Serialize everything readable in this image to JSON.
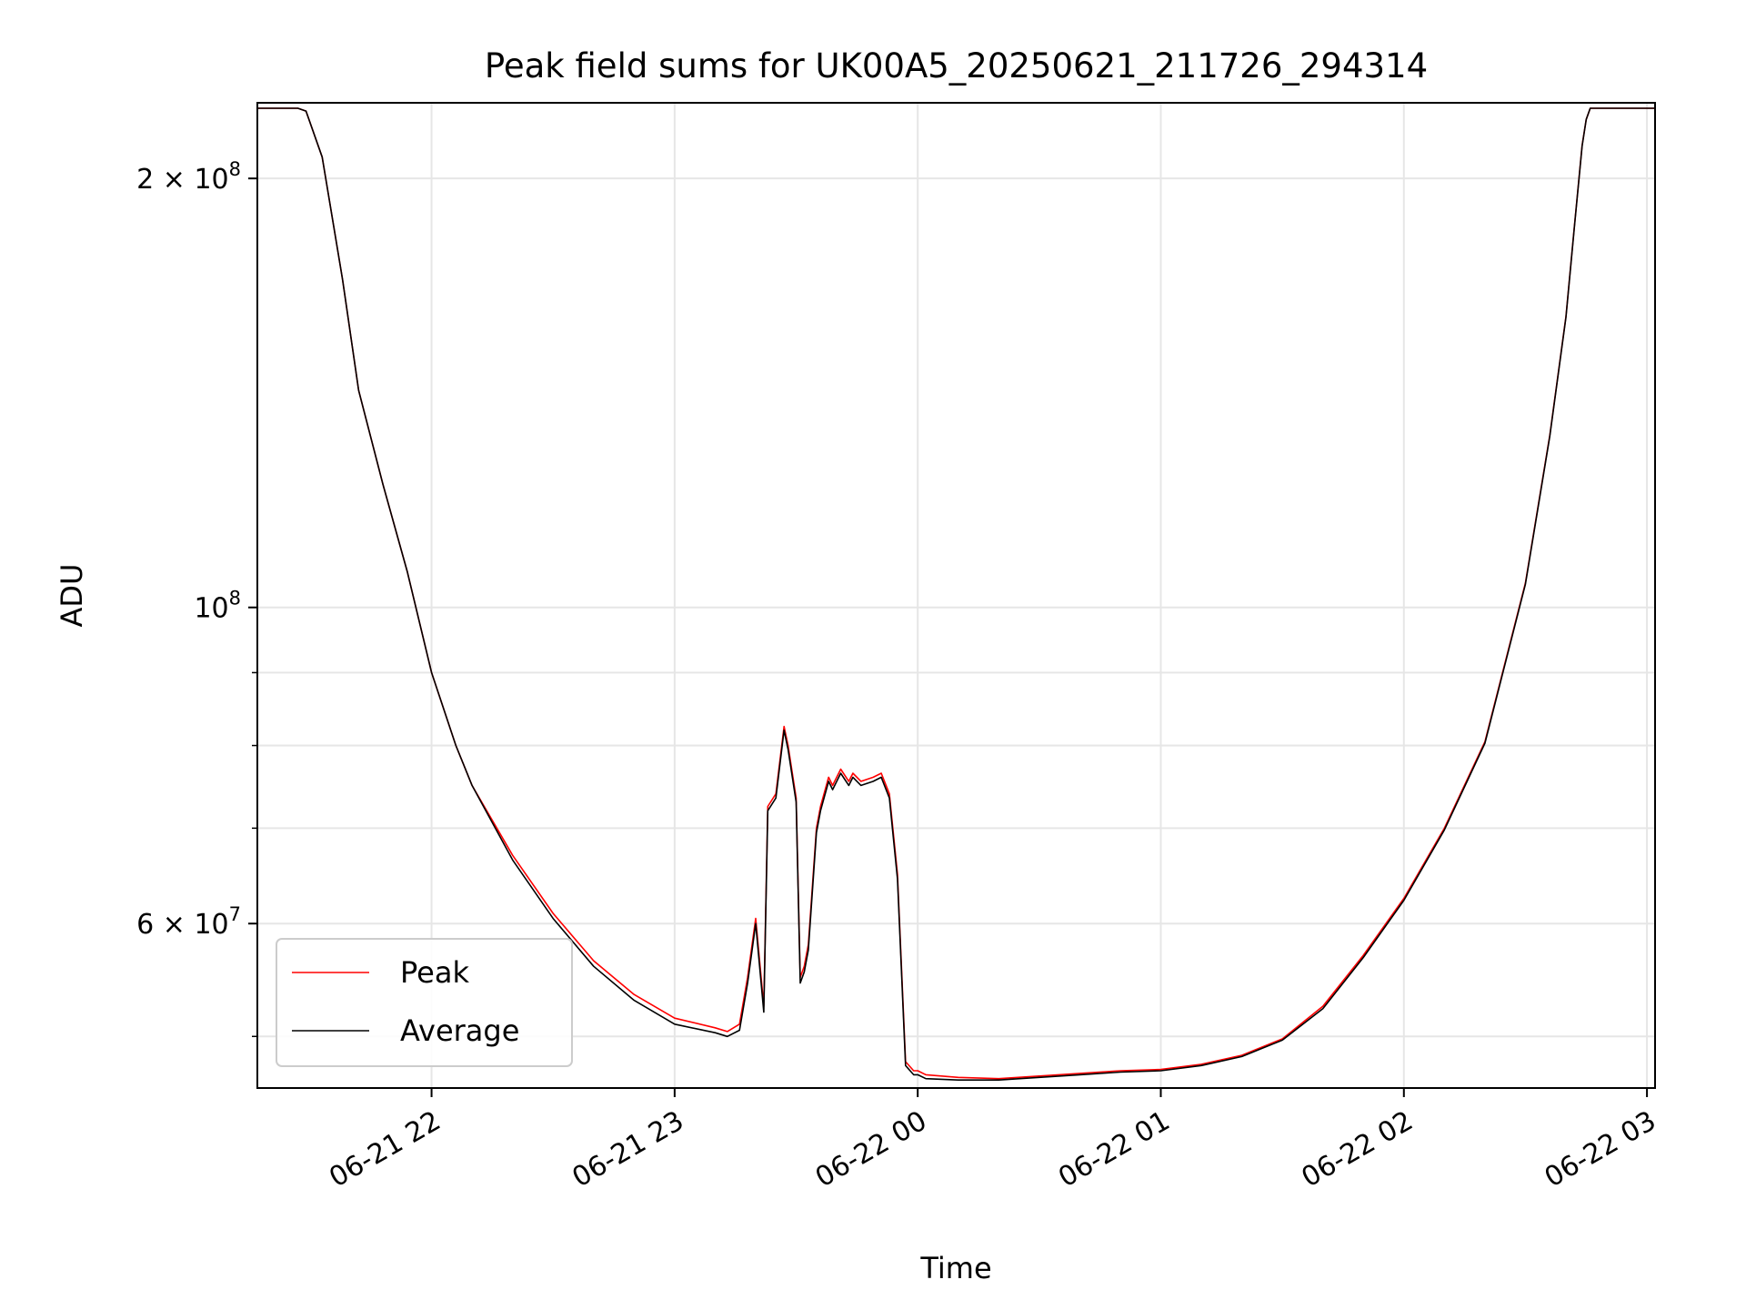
{
  "chart_data": {
    "type": "line",
    "title": "Peak field sums for UK00A5_20250621_211726_294314",
    "xlabel": "Time",
    "ylabel": "ADU",
    "yscale": "log",
    "ylim": [
      46000000,
      226000000
    ],
    "xlim": [
      "2025-06-21 21:17",
      "2025-06-22 03:02"
    ],
    "x_ticks": [
      {
        "value": "2025-06-21 22:00",
        "label": "06-21 22"
      },
      {
        "value": "2025-06-21 23:00",
        "label": "06-21 23"
      },
      {
        "value": "2025-06-22 00:00",
        "label": "06-22 00"
      },
      {
        "value": "2025-06-22 01:00",
        "label": "06-22 01"
      },
      {
        "value": "2025-06-22 02:00",
        "label": "06-22 02"
      },
      {
        "value": "2025-06-22 03:00",
        "label": "06-22 03"
      }
    ],
    "y_major_ticks": [
      {
        "value": 200000000,
        "label_mantissa": "2",
        "label_exp": "8",
        "label_has_mantissa": true
      },
      {
        "value": 100000000,
        "label_mantissa": "",
        "label_exp": "8",
        "label_has_mantissa": false
      },
      {
        "value": 60000000,
        "label_mantissa": "6",
        "label_exp": "7",
        "label_has_mantissa": true
      }
    ],
    "y_minor_ticks": [
      50000000,
      70000000,
      80000000,
      90000000
    ],
    "grid": true,
    "legend": {
      "placement": "lower-left"
    },
    "series": [
      {
        "name": "Peak",
        "color": "#ff0000",
        "x": [
          "2025-06-21 21:17",
          "2025-06-21 21:27",
          "2025-06-21 21:29",
          "2025-06-21 21:33",
          "2025-06-21 21:38",
          "2025-06-21 21:42",
          "2025-06-21 21:48",
          "2025-06-21 21:54",
          "2025-06-21 22:00",
          "2025-06-21 22:06",
          "2025-06-21 22:10",
          "2025-06-21 22:20",
          "2025-06-21 22:30",
          "2025-06-21 22:40",
          "2025-06-21 22:50",
          "2025-06-21 23:00",
          "2025-06-21 23:10",
          "2025-06-21 23:13",
          "2025-06-21 23:16",
          "2025-06-21 23:18",
          "2025-06-21 23:20",
          "2025-06-21 23:22",
          "2025-06-21 23:23",
          "2025-06-21 23:25",
          "2025-06-21 23:27",
          "2025-06-21 23:28",
          "2025-06-21 23:30",
          "2025-06-21 23:31",
          "2025-06-21 23:32",
          "2025-06-21 23:33",
          "2025-06-21 23:35",
          "2025-06-21 23:36",
          "2025-06-21 23:38",
          "2025-06-21 23:39",
          "2025-06-21 23:41",
          "2025-06-21 23:43",
          "2025-06-21 23:44",
          "2025-06-21 23:46",
          "2025-06-21 23:49",
          "2025-06-21 23:51",
          "2025-06-21 23:53",
          "2025-06-21 23:55",
          "2025-06-21 23:57",
          "2025-06-21 23:59",
          "2025-06-22 00:00",
          "2025-06-22 00:02",
          "2025-06-22 00:10",
          "2025-06-22 00:20",
          "2025-06-22 00:30",
          "2025-06-22 00:40",
          "2025-06-22 00:50",
          "2025-06-22 01:00",
          "2025-06-22 01:10",
          "2025-06-22 01:20",
          "2025-06-22 01:30",
          "2025-06-22 01:40",
          "2025-06-22 01:50",
          "2025-06-22 02:00",
          "2025-06-22 02:10",
          "2025-06-22 02:20",
          "2025-06-22 02:30",
          "2025-06-22 02:36",
          "2025-06-22 02:40",
          "2025-06-22 02:42",
          "2025-06-22 02:44",
          "2025-06-22 02:45",
          "2025-06-22 02:46",
          "2025-06-22 03:02"
        ],
        "values": [
          224000000,
          224000000,
          223000000,
          207000000,
          170000000,
          142000000,
          122000000,
          106000000,
          90000000,
          80000000,
          75000000,
          67000000,
          61000000,
          56500000,
          53500000,
          51500000,
          50700000,
          50400000,
          51000000,
          55000000,
          60500000,
          52500000,
          72500000,
          74000000,
          82500000,
          80000000,
          73500000,
          55000000,
          56000000,
          58000000,
          70000000,
          72500000,
          76000000,
          75000000,
          77000000,
          75500000,
          76500000,
          75500000,
          76000000,
          76500000,
          74000000,
          65000000,
          48000000,
          47300000,
          47300000,
          47000000,
          46800000,
          46700000,
          46900000,
          47100000,
          47300000,
          47400000,
          47800000,
          48500000,
          49800000,
          52500000,
          57000000,
          62500000,
          70000000,
          80500000,
          104000000,
          132000000,
          160000000,
          184000000,
          211000000,
          220000000,
          224000000,
          224000000
        ]
      },
      {
        "name": "Average",
        "color": "#000000",
        "x": [
          "2025-06-21 21:17",
          "2025-06-21 21:27",
          "2025-06-21 21:29",
          "2025-06-21 21:33",
          "2025-06-21 21:38",
          "2025-06-21 21:42",
          "2025-06-21 21:48",
          "2025-06-21 21:54",
          "2025-06-21 22:00",
          "2025-06-21 22:06",
          "2025-06-21 22:10",
          "2025-06-21 22:20",
          "2025-06-21 22:30",
          "2025-06-21 22:40",
          "2025-06-21 22:50",
          "2025-06-21 23:00",
          "2025-06-21 23:10",
          "2025-06-21 23:13",
          "2025-06-21 23:16",
          "2025-06-21 23:18",
          "2025-06-21 23:20",
          "2025-06-21 23:22",
          "2025-06-21 23:23",
          "2025-06-21 23:25",
          "2025-06-21 23:27",
          "2025-06-21 23:28",
          "2025-06-21 23:30",
          "2025-06-21 23:31",
          "2025-06-21 23:32",
          "2025-06-21 23:33",
          "2025-06-21 23:35",
          "2025-06-21 23:36",
          "2025-06-21 23:38",
          "2025-06-21 23:39",
          "2025-06-21 23:41",
          "2025-06-21 23:43",
          "2025-06-21 23:44",
          "2025-06-21 23:46",
          "2025-06-21 23:49",
          "2025-06-21 23:51",
          "2025-06-21 23:53",
          "2025-06-21 23:55",
          "2025-06-21 23:57",
          "2025-06-21 23:59",
          "2025-06-22 00:00",
          "2025-06-22 00:02",
          "2025-06-22 00:10",
          "2025-06-22 00:20",
          "2025-06-22 00:30",
          "2025-06-22 00:40",
          "2025-06-22 00:50",
          "2025-06-22 01:00",
          "2025-06-22 01:10",
          "2025-06-22 01:20",
          "2025-06-22 01:30",
          "2025-06-22 01:40",
          "2025-06-22 01:50",
          "2025-06-22 02:00",
          "2025-06-22 02:10",
          "2025-06-22 02:20",
          "2025-06-22 02:30",
          "2025-06-22 02:36",
          "2025-06-22 02:40",
          "2025-06-22 02:42",
          "2025-06-22 02:44",
          "2025-06-22 02:45",
          "2025-06-22 02:46",
          "2025-06-22 03:02"
        ],
        "values": [
          224000000,
          224000000,
          223000000,
          207000000,
          170000000,
          142000000,
          122000000,
          106000000,
          90000000,
          80000000,
          75000000,
          66500000,
          60500000,
          56000000,
          53000000,
          51000000,
          50300000,
          50000000,
          50500000,
          54500000,
          60000000,
          52000000,
          72000000,
          73500000,
          82000000,
          79500000,
          73000000,
          54500000,
          55500000,
          57500000,
          69500000,
          72000000,
          75500000,
          74500000,
          76500000,
          75000000,
          76000000,
          75000000,
          75500000,
          76000000,
          73500000,
          64500000,
          47700000,
          47000000,
          47000000,
          46700000,
          46600000,
          46600000,
          46800000,
          47000000,
          47200000,
          47300000,
          47700000,
          48400000,
          49700000,
          52300000,
          56800000,
          62300000,
          69800000,
          80300000,
          103800000,
          131800000,
          159800000,
          183800000,
          210800000,
          220000000,
          224000000,
          224000000
        ]
      }
    ]
  }
}
